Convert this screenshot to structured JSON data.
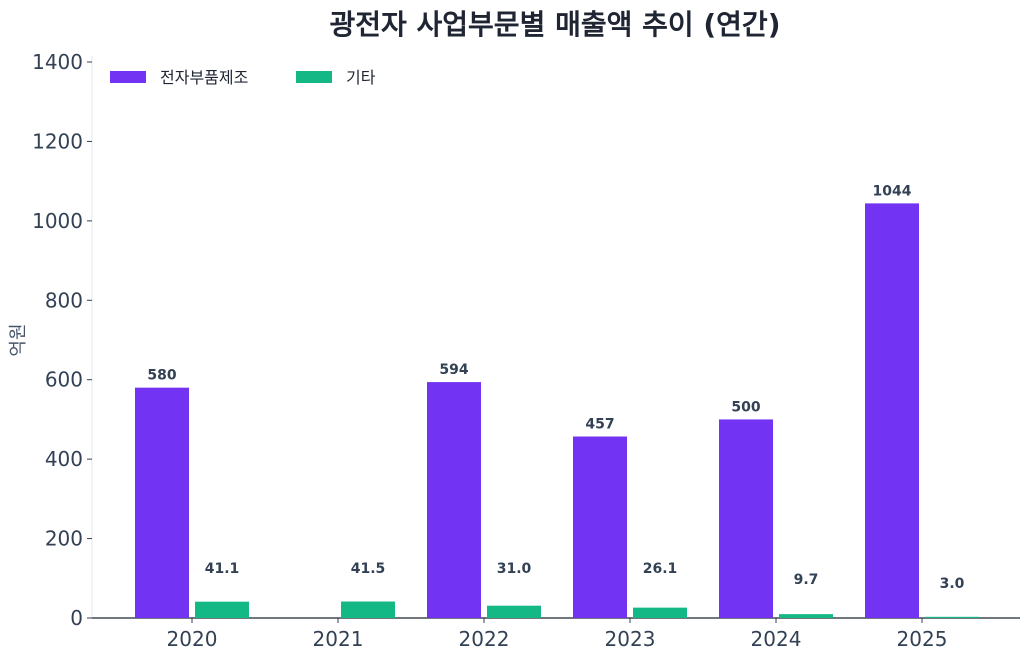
{
  "chart_data": {
    "type": "bar",
    "title": "광전자 사업부문별 매출액 추이 (연간)",
    "xlabel": "",
    "ylabel": "억원",
    "ylim": [
      0,
      1400
    ],
    "yticks": [
      0,
      200,
      400,
      600,
      800,
      1000,
      1200,
      1400
    ],
    "categories": [
      "2020",
      "2021",
      "2022",
      "2023",
      "2024",
      "2025"
    ],
    "series": [
      {
        "name": "전자부품제조",
        "color": "#7233f2",
        "values": [
          580,
          null,
          594,
          457,
          500,
          1044
        ],
        "labels": [
          "580",
          "",
          "594",
          "457",
          "500",
          "1044"
        ]
      },
      {
        "name": "기타",
        "color": "#14b885",
        "values": [
          41.1,
          41.5,
          31.0,
          26.1,
          9.7,
          3.0
        ],
        "labels": [
          "41.1",
          "41.5",
          "31.0",
          "26.1",
          "9.7",
          "3.0"
        ]
      }
    ],
    "legend": "top-left",
    "grid": false
  }
}
